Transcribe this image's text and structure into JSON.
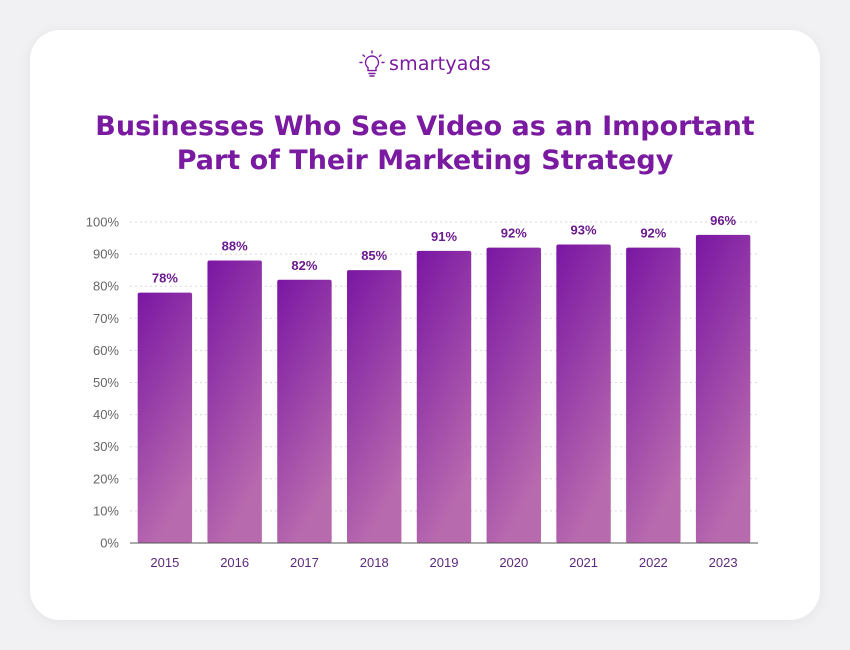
{
  "brand": {
    "name": "smartyads",
    "icon": "lightbulb-icon",
    "color": "#7a1aa0"
  },
  "chart_data": {
    "type": "bar",
    "title": "Businesses Who See Video as an Important Part of Their Marketing Strategy",
    "categories": [
      "2015",
      "2016",
      "2017",
      "2018",
      "2019",
      "2020",
      "2021",
      "2022",
      "2023"
    ],
    "values": [
      78,
      88,
      82,
      85,
      91,
      92,
      93,
      92,
      96
    ],
    "value_labels": [
      "78%",
      "88%",
      "82%",
      "85%",
      "91%",
      "92%",
      "93%",
      "92%",
      "96%"
    ],
    "y_ticks": [
      "0%",
      "10%",
      "20%",
      "30%",
      "40%",
      "50%",
      "60%",
      "70%",
      "80%",
      "90%",
      "100%"
    ],
    "ylim": [
      0,
      100
    ],
    "xlabel": "",
    "ylabel": "",
    "grid": true,
    "legend": "none",
    "colors": {
      "bar_top": "#7a16a3",
      "bar_bottom": "#b86aae",
      "title": "#7a1aa0",
      "label": "#6b1a8e"
    }
  }
}
